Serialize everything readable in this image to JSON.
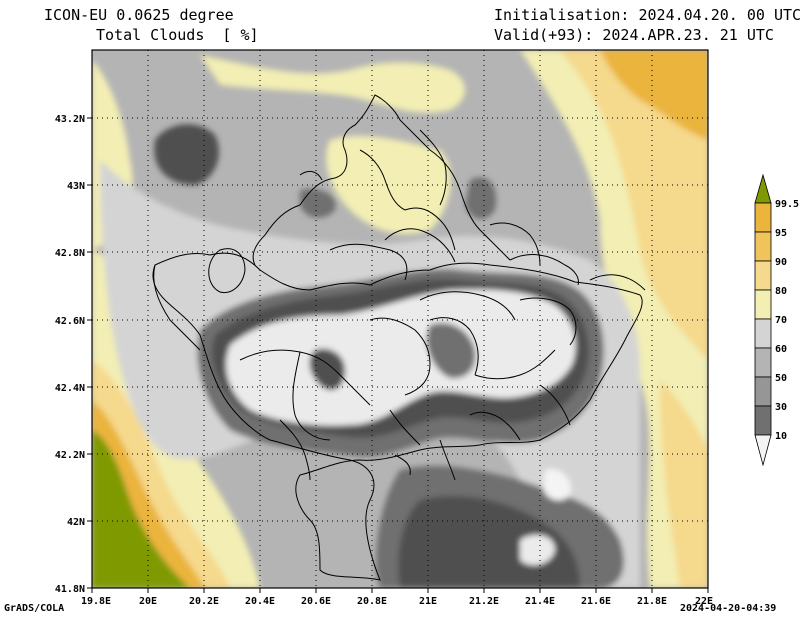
{
  "header": {
    "model": "ICON-EU 0.0625 degree",
    "field": "Total Clouds  [ %]",
    "init": "Initialisation: 2024.04.20. 00 UTC",
    "valid": "Valid(+93): 2024.APR.23. 21 UTC"
  },
  "footer": {
    "credit": "GrADS/COLA",
    "timestamp": "2024-04-20-04:39"
  },
  "axes": {
    "x_ticks": [
      "19.8E",
      "20E",
      "20.2E",
      "20.4E",
      "20.6E",
      "20.8E",
      "21E",
      "21.2E",
      "21.4E",
      "21.6E",
      "21.8E",
      "22E"
    ],
    "y_ticks": [
      "43.2N",
      "43N",
      "42.8N",
      "42.6N",
      "42.4N",
      "42.2N",
      "42N",
      "41.8N"
    ]
  },
  "legend": {
    "labels": [
      "99.5",
      "95",
      "90",
      "80",
      "70",
      "60",
      "50",
      "30",
      "10"
    ],
    "colors": [
      "#7f9a00",
      "#ebb43c",
      "#f0c45a",
      "#f5d98c",
      "#f2eeb4",
      "#d4d4d4",
      "#b4b4b4",
      "#969696",
      "#707070",
      "#505050",
      "#f4f4f4"
    ]
  },
  "colors": {
    "lightest": "#ebebeb",
    "dark": "#505050",
    "gray60": "#969696",
    "gray70": "#b4b4b4",
    "lightgray": "#d4d4d4",
    "paleyellow": "#f2eeb4",
    "yellow": "#f5d98c",
    "orange": "#f0c45a",
    "deeporange": "#ebb43c",
    "olive": "#7f9a00",
    "border": "#000000"
  }
}
